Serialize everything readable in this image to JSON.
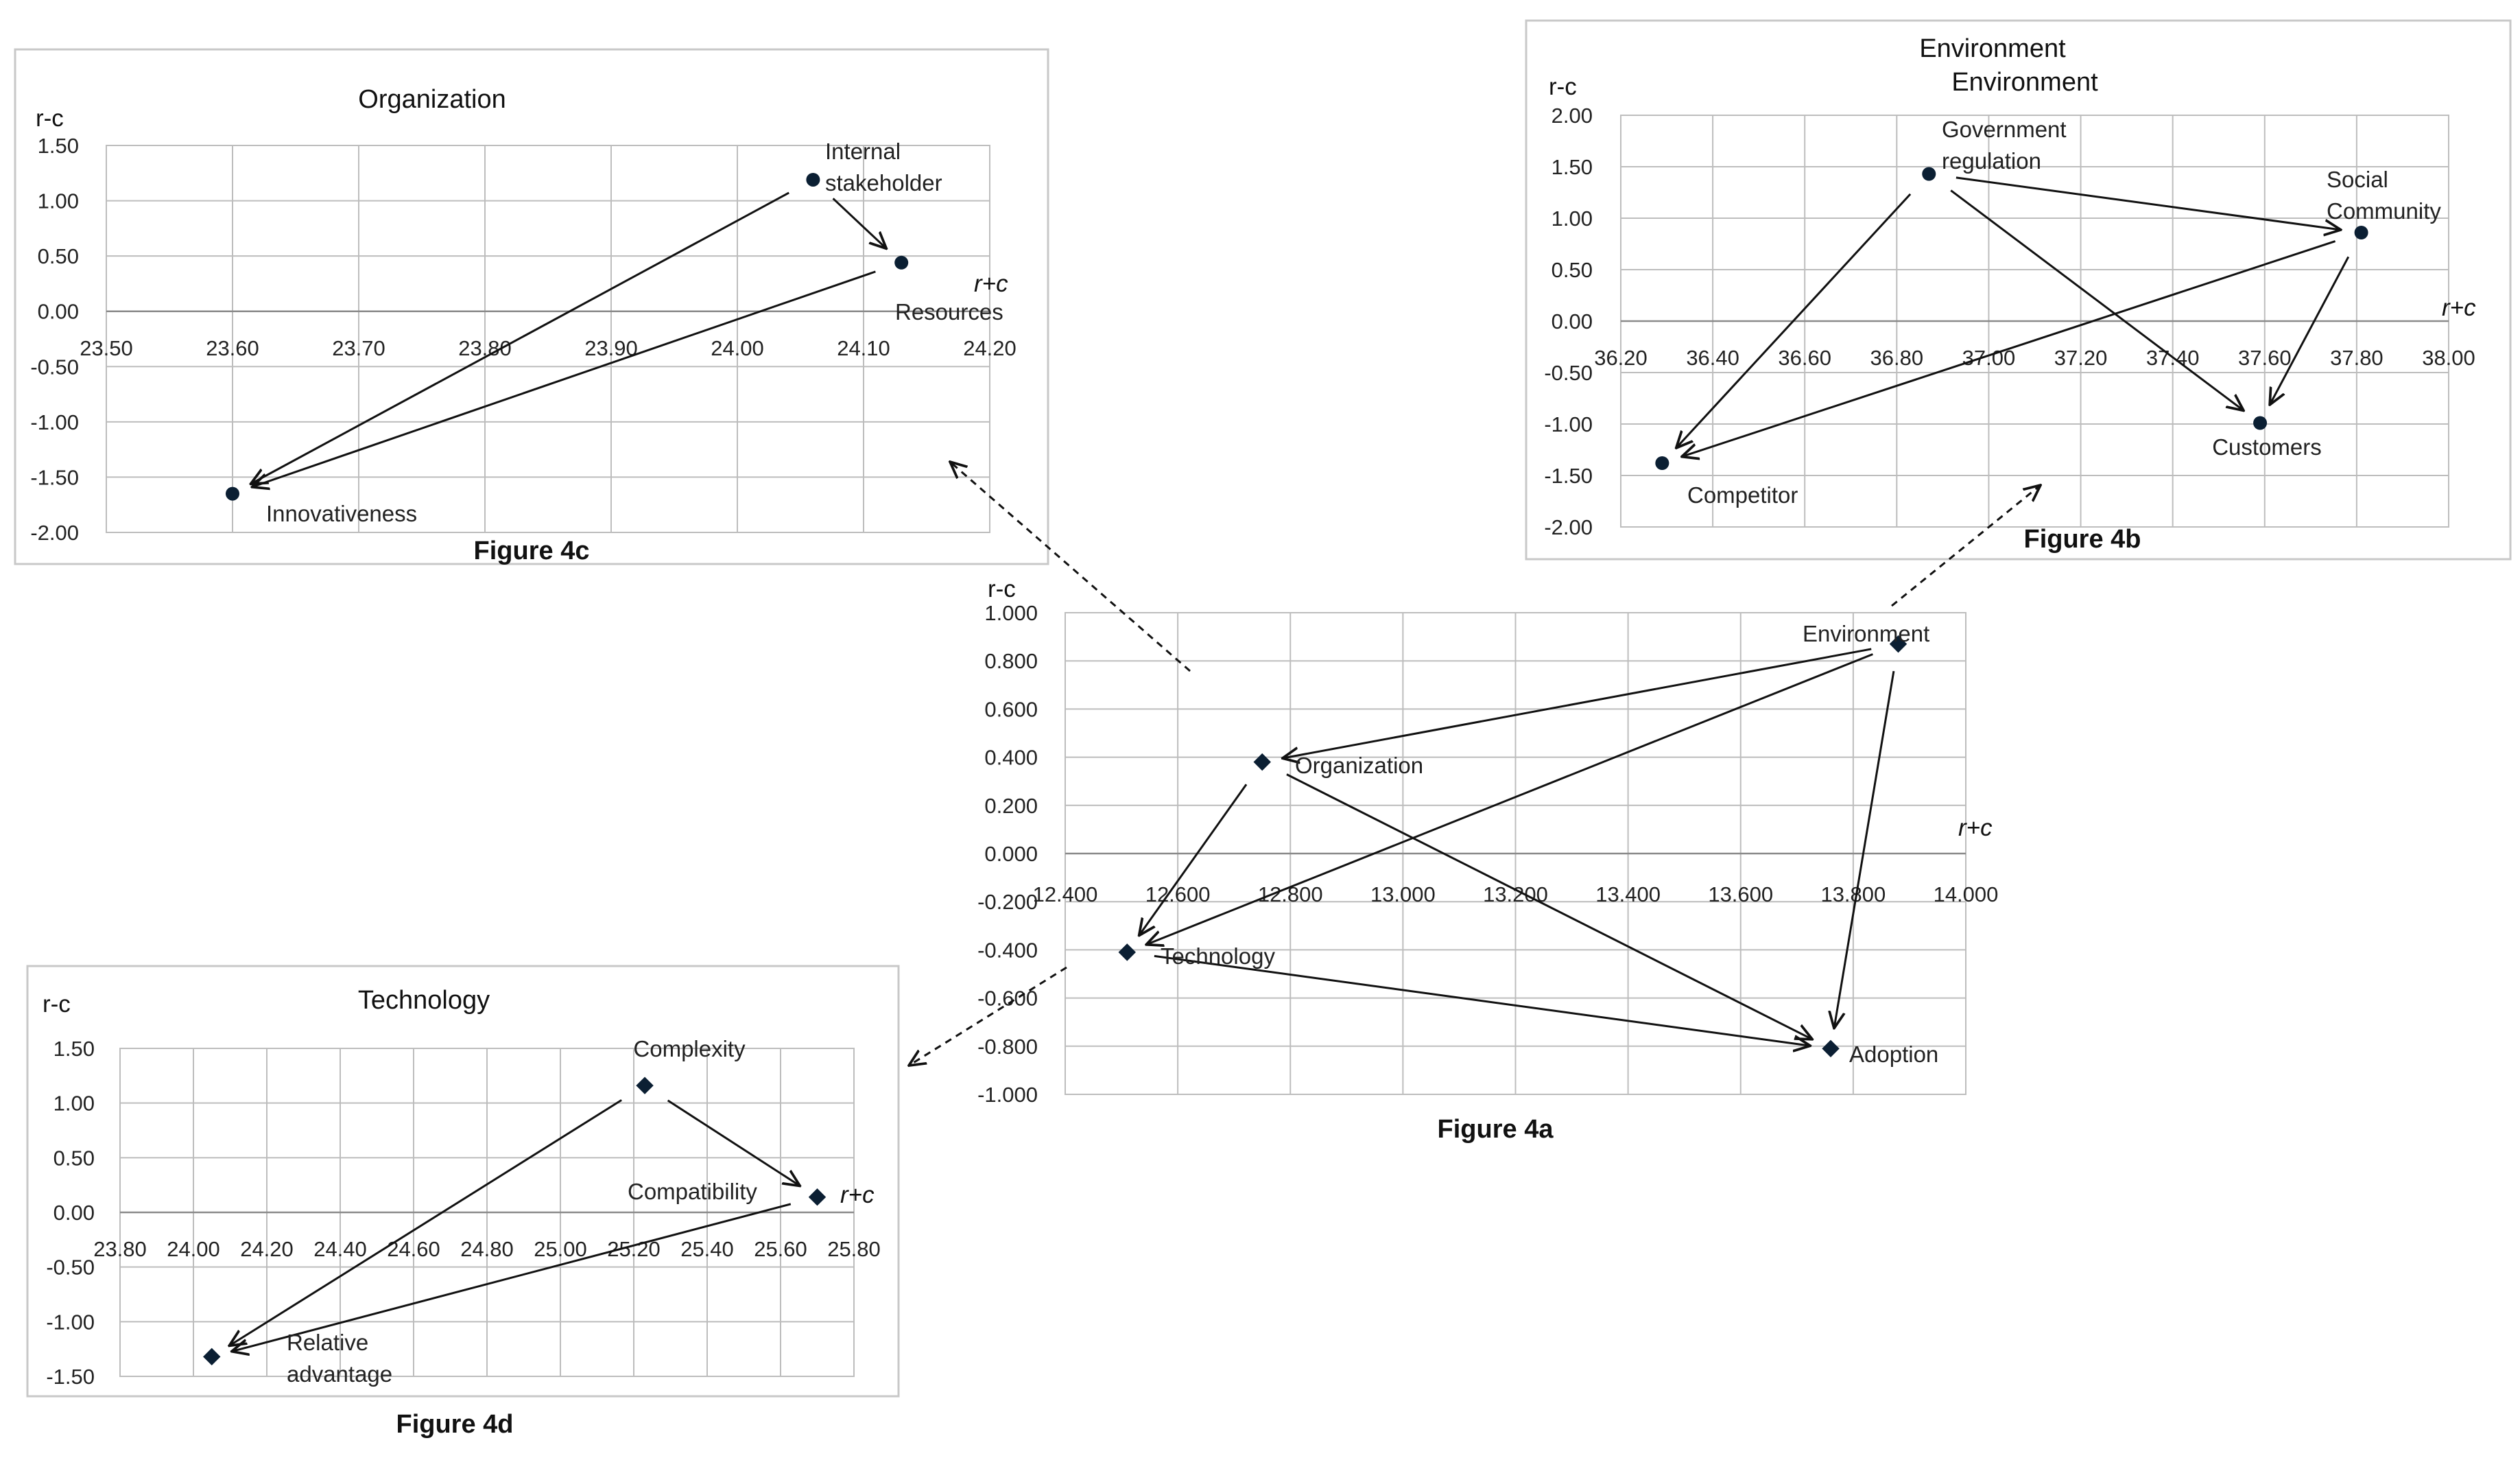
{
  "colors": {
    "marker": "#0b1f33",
    "grid": "#bdbdbd",
    "arrow": "#111111",
    "frame": "#c8c8c8"
  },
  "chart_data": [
    {
      "id": "4a",
      "type": "scatter",
      "caption": "Figure 4a",
      "title": "",
      "xlabel": "r+c",
      "ylabel": "r-c",
      "xlim": [
        12.4,
        14.0
      ],
      "ylim": [
        -1.0,
        1.0
      ],
      "xticks": [
        "12.400",
        "12.600",
        "12.800",
        "13.000",
        "13.200",
        "13.400",
        "13.600",
        "13.800",
        "14.000"
      ],
      "yticks": [
        "1.000",
        "0.800",
        "0.600",
        "0.400",
        "0.200",
        "0.000",
        "-0.200",
        "-0.400",
        "-0.600",
        "-0.800",
        "-1.000"
      ],
      "marker": "diamond",
      "points": [
        {
          "label": "Environment",
          "x": 13.88,
          "y": 0.87
        },
        {
          "label": "Organization",
          "x": 12.75,
          "y": 0.38
        },
        {
          "label": "Technology",
          "x": 12.51,
          "y": -0.41
        },
        {
          "label": "Adoption",
          "x": 13.76,
          "y": -0.81
        }
      ]
    },
    {
      "id": "4b",
      "type": "scatter",
      "caption": "Figure 4b",
      "title": "Environment",
      "subtitle": "Environment",
      "xlabel": "r+c",
      "ylabel": "r-c",
      "xlim": [
        36.2,
        38.0
      ],
      "ylim": [
        -2.0,
        2.0
      ],
      "xticks": [
        "36.20",
        "36.40",
        "36.60",
        "36.80",
        "37.00",
        "37.20",
        "37.40",
        "37.60",
        "37.80",
        "38.00"
      ],
      "yticks": [
        "2.00",
        "1.50",
        "1.00",
        "0.50",
        "0.00",
        "-0.50",
        "-1.00",
        "-1.50",
        "-2.00"
      ],
      "marker": "circle",
      "points": [
        {
          "label": "Government regulation",
          "x": 36.87,
          "y": 1.43
        },
        {
          "label": "Social Community",
          "x": 37.81,
          "y": 0.86
        },
        {
          "label": "Customers",
          "x": 37.59,
          "y": -0.99
        },
        {
          "label": "Competitor",
          "x": 36.29,
          "y": -1.38
        }
      ]
    },
    {
      "id": "4c",
      "type": "scatter",
      "caption": "Figure 4c",
      "title": "Organization",
      "xlabel": "r+c",
      "ylabel": "r-c",
      "xlim": [
        23.5,
        24.2
      ],
      "ylim": [
        -2.0,
        1.5
      ],
      "xticks": [
        "23.50",
        "23.60",
        "23.70",
        "23.80",
        "23.90",
        "24.00",
        "24.10",
        "24.20"
      ],
      "yticks": [
        "1.50",
        "1.00",
        "0.50",
        "0.00",
        "-0.50",
        "-1.00",
        "-1.50",
        "-2.00"
      ],
      "marker": "circle",
      "points": [
        {
          "label": "Internal stakeholder",
          "x": 24.06,
          "y": 1.19
        },
        {
          "label": "Resources",
          "x": 24.13,
          "y": 0.44
        },
        {
          "label": "Innovativeness",
          "x": 23.6,
          "y": -1.65
        }
      ]
    },
    {
      "id": "4d",
      "type": "scatter",
      "caption": "Figure 4d",
      "title": "Technology",
      "xlabel": "r+c",
      "ylabel": "r-c",
      "xlim": [
        23.8,
        25.8
      ],
      "ylim": [
        -1.5,
        1.5
      ],
      "xticks": [
        "23.80",
        "24.00",
        "24.20",
        "24.40",
        "24.60",
        "24.80",
        "25.00",
        "25.20",
        "25.40",
        "25.60",
        "25.80"
      ],
      "yticks": [
        "1.50",
        "1.00",
        "0.50",
        "0.00",
        "-0.50",
        "-1.00",
        "-1.50"
      ],
      "marker": "diamond",
      "points": [
        {
          "label": "Complexity",
          "x": 25.23,
          "y": 1.16
        },
        {
          "label": "Compatibility",
          "x": 25.7,
          "y": 0.14
        },
        {
          "label": "Relative advantage",
          "x": 24.05,
          "y": -1.32
        }
      ]
    }
  ]
}
